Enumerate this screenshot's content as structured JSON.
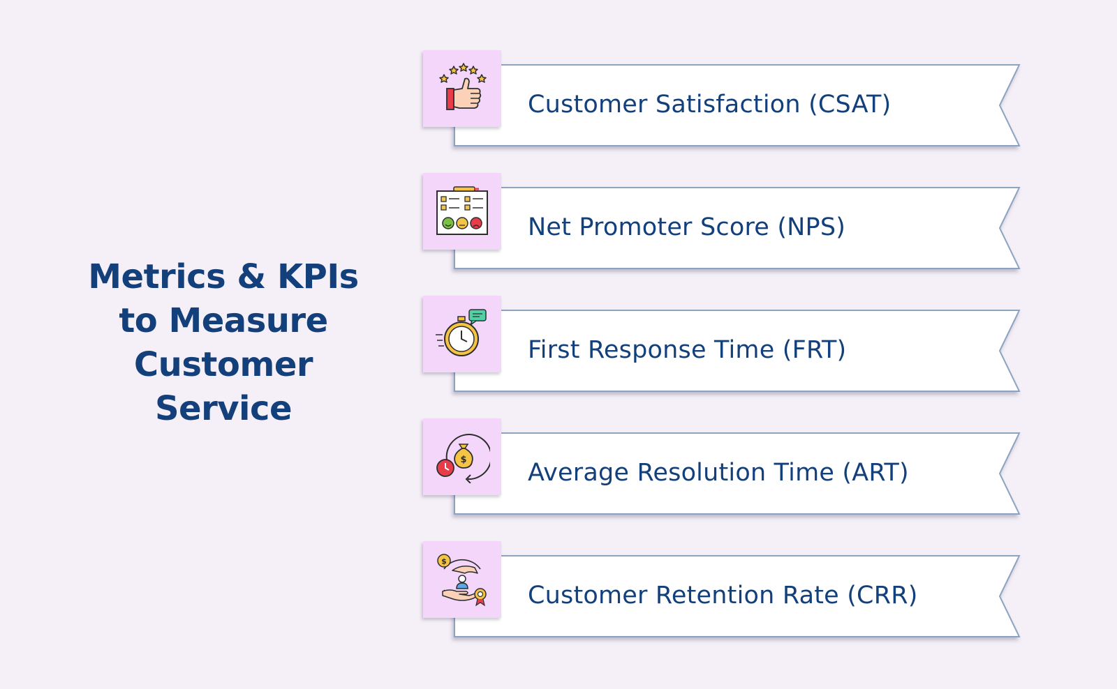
{
  "title": {
    "line1": "Metrics & KPIs",
    "line2": "to Measure",
    "line3": "Customer",
    "line4": "Service"
  },
  "items": [
    {
      "label": "Customer Satisfaction (CSAT)",
      "icon": "thumbs-up-stars-icon"
    },
    {
      "label": "Net Promoter Score (NPS)",
      "icon": "survey-clipboard-icon"
    },
    {
      "label": "First Response Time (FRT)",
      "icon": "stopwatch-chat-icon"
    },
    {
      "label": "Average Resolution Time (ART)",
      "icon": "money-bag-clock-icon"
    },
    {
      "label": "Customer Retention Rate (CRR)",
      "icon": "hands-customer-icon"
    }
  ],
  "colors": {
    "background": "#f5eff7",
    "title": "#133f7a",
    "icon_box": "#f4d6fb",
    "ribbon_fill": "#ffffff",
    "ribbon_border": "#8aa3bf"
  }
}
